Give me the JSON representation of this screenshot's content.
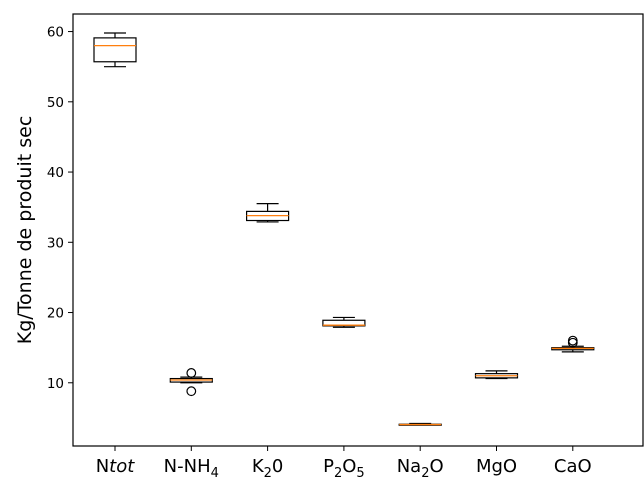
{
  "chart_data": {
    "type": "box",
    "ylabel": "Kg/Tonne de produit sec",
    "ylim": [
      1.0,
      62.5
    ],
    "yticks": [
      10,
      20,
      30,
      40,
      50,
      60
    ],
    "ytick_labels": [
      "10",
      "20",
      "30",
      "40",
      "50",
      "60"
    ],
    "grid": false,
    "categories": [
      {
        "id": "ntot",
        "label_main": "N",
        "label_italic": "tot",
        "label_sub": "",
        "label_after": ""
      },
      {
        "id": "nnh4",
        "label_main": "N-NH",
        "label_italic": "",
        "label_sub": "4",
        "label_after": ""
      },
      {
        "id": "k2o",
        "label_main": "K",
        "label_italic": "",
        "label_sub": "2",
        "label_after": "0"
      },
      {
        "id": "p2o5",
        "label_main": "P",
        "label_italic": "",
        "label_sub": "2",
        "label_after": "O",
        "label_sub2": "5"
      },
      {
        "id": "na2o",
        "label_main": "Na",
        "label_italic": "",
        "label_sub": "2",
        "label_after": "O"
      },
      {
        "id": "mgo",
        "label_main": "MgO",
        "label_italic": "",
        "label_sub": "",
        "label_after": ""
      },
      {
        "id": "cao",
        "label_main": "CaO",
        "label_italic": "",
        "label_sub": "",
        "label_after": ""
      }
    ],
    "boxes": [
      {
        "category": "ntot",
        "whisker_low": 55.0,
        "q1": 55.7,
        "median": 58.0,
        "q3": 59.1,
        "whisker_high": 59.8,
        "outliers": []
      },
      {
        "category": "nnh4",
        "whisker_low": 10.0,
        "q1": 10.1,
        "median": 10.4,
        "q3": 10.6,
        "whisker_high": 10.8,
        "outliers": [
          11.4,
          8.8
        ]
      },
      {
        "category": "k2o",
        "whisker_low": 32.9,
        "q1": 33.1,
        "median": 33.8,
        "q3": 34.4,
        "whisker_high": 35.5,
        "outliers": []
      },
      {
        "category": "p2o5",
        "whisker_low": 17.9,
        "q1": 18.1,
        "median": 18.2,
        "q3": 18.9,
        "whisker_high": 19.3,
        "outliers": []
      },
      {
        "category": "na2o",
        "whisker_low": 4.0,
        "q1": 4.0,
        "median": 4.05,
        "q3": 4.1,
        "whisker_high": 4.2,
        "outliers": []
      },
      {
        "category": "mgo",
        "whisker_low": 10.6,
        "q1": 10.7,
        "median": 11.0,
        "q3": 11.3,
        "whisker_high": 11.7,
        "outliers": []
      },
      {
        "category": "cao",
        "whisker_low": 14.4,
        "q1": 14.7,
        "median": 14.9,
        "q3": 15.0,
        "whisker_high": 15.2,
        "outliers": [
          15.7,
          16.0
        ]
      }
    ],
    "colors": {
      "box": "#000000",
      "median": "#ff7f0e",
      "axes": "#000000"
    }
  }
}
